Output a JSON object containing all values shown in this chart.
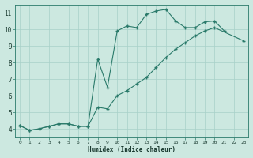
{
  "xlabel": "Humidex (Indice chaleur)",
  "bg_color": "#cce8e0",
  "line_color": "#2a7a6a",
  "grid_color": "#a8d0c8",
  "line1_x": [
    0,
    1,
    2,
    3,
    4,
    5,
    6,
    7,
    8,
    9,
    10,
    11,
    12,
    13,
    14,
    15,
    16,
    17,
    18,
    19,
    20,
    21
  ],
  "line1_y": [
    4.2,
    3.9,
    4.0,
    4.15,
    4.3,
    4.3,
    4.15,
    4.15,
    8.2,
    6.5,
    9.9,
    10.2,
    10.1,
    10.9,
    11.1,
    11.2,
    10.5,
    10.1,
    10.1,
    10.45,
    10.5,
    9.9
  ],
  "line2_x": [
    0,
    1,
    2,
    3,
    4,
    5,
    6,
    7,
    8,
    9,
    10,
    11,
    12,
    13,
    14,
    15,
    16,
    17,
    18,
    19,
    20,
    23
  ],
  "line2_y": [
    4.2,
    3.9,
    4.0,
    4.15,
    4.3,
    4.3,
    4.15,
    4.15,
    5.3,
    5.2,
    6.0,
    6.3,
    6.7,
    7.1,
    7.7,
    8.3,
    8.8,
    9.2,
    9.6,
    9.9,
    10.1,
    9.3
  ],
  "ylim": [
    3.5,
    11.5
  ],
  "xlim": [
    -0.5,
    23.5
  ],
  "yticks": [
    4,
    5,
    6,
    7,
    8,
    9,
    10,
    11
  ],
  "xticks": [
    0,
    1,
    2,
    3,
    4,
    5,
    6,
    7,
    8,
    9,
    10,
    11,
    12,
    13,
    14,
    15,
    16,
    17,
    18,
    19,
    20,
    21,
    22,
    23
  ],
  "marker": "+",
  "markersize": 3,
  "linewidth": 0.8
}
